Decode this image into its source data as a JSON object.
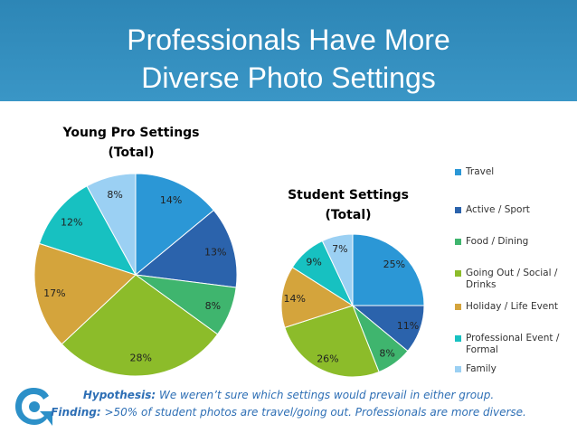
{
  "header": {
    "title_line1": "Professionals Have More",
    "title_line2": "Diverse Photo Settings"
  },
  "colors": {
    "header_bg": "#3a96c6",
    "footer_text": "#2e6fb5",
    "travel": "#2b97d6",
    "active_sport": "#2b63ac",
    "food_dining": "#3fb56e",
    "going_out": "#8cbc2a",
    "holiday": "#d4a43c",
    "professional_event": "#17c1c1",
    "family": "#9bd0f3"
  },
  "chart_data": [
    {
      "type": "pie",
      "title_line1": "Young Pro Settings",
      "title_line2": "(Total)",
      "slices": [
        {
          "label": "Travel",
          "value": 14,
          "display": "14%",
          "color": "#2b97d6"
        },
        {
          "label": "Active / Sport",
          "value": 13,
          "display": "13%",
          "color": "#2b63ac"
        },
        {
          "label": "Food / Dining",
          "value": 8,
          "display": "8%",
          "color": "#3fb56e"
        },
        {
          "label": "Going Out / Social / Drinks",
          "value": 28,
          "display": "28%",
          "color": "#8cbc2a"
        },
        {
          "label": "Holiday / Life Event",
          "value": 17,
          "display": "17%",
          "color": "#d4a43c"
        },
        {
          "label": "Professional Event / Formal",
          "value": 12,
          "display": "12%",
          "color": "#17c1c1"
        },
        {
          "label": "Family",
          "value": 8,
          "display": "8%",
          "color": "#9bd0f3"
        }
      ]
    },
    {
      "type": "pie",
      "title_line1": "Student Settings",
      "title_line2": "(Total)",
      "slices": [
        {
          "label": "Travel",
          "value": 25,
          "display": "25%",
          "color": "#2b97d6"
        },
        {
          "label": "Active / Sport",
          "value": 11,
          "display": "11%",
          "color": "#2b63ac"
        },
        {
          "label": "Food / Dining",
          "value": 8,
          "display": "8%",
          "color": "#3fb56e"
        },
        {
          "label": "Going Out / Social / Drinks",
          "value": 26,
          "display": "26%",
          "color": "#8cbc2a"
        },
        {
          "label": "Holiday / Life Event",
          "value": 14,
          "display": "14%",
          "color": "#d4a43c"
        },
        {
          "label": "Professional Event / Formal",
          "value": 9,
          "display": "9%",
          "color": "#17c1c1"
        },
        {
          "label": "Family",
          "value": 7,
          "display": "7%",
          "color": "#9bd0f3"
        }
      ]
    }
  ],
  "legend": [
    {
      "label": "Travel",
      "color": "#2b97d6"
    },
    {
      "label": "Active / Sport",
      "color": "#2b63ac"
    },
    {
      "label": "Food / Dining",
      "color": "#3fb56e"
    },
    {
      "label": "Going Out / Social / Drinks",
      "color": "#8cbc2a"
    },
    {
      "label": "Holiday / Life Event",
      "color": "#d4a43c"
    },
    {
      "label": "Professional Event / Formal",
      "color": "#17c1c1"
    },
    {
      "label": "Family",
      "color": "#9bd0f3"
    }
  ],
  "footer": {
    "hypothesis_label": "Hypothesis:",
    "hypothesis_text": " We weren’t sure which settings would prevail in either group.",
    "finding_label": "Finding:",
    "finding_text": " >50% of student photos are travel/going out. Professionals are more diverse."
  },
  "logo": {
    "icon": "swirl-logo-icon",
    "color": "#2c90c8"
  }
}
